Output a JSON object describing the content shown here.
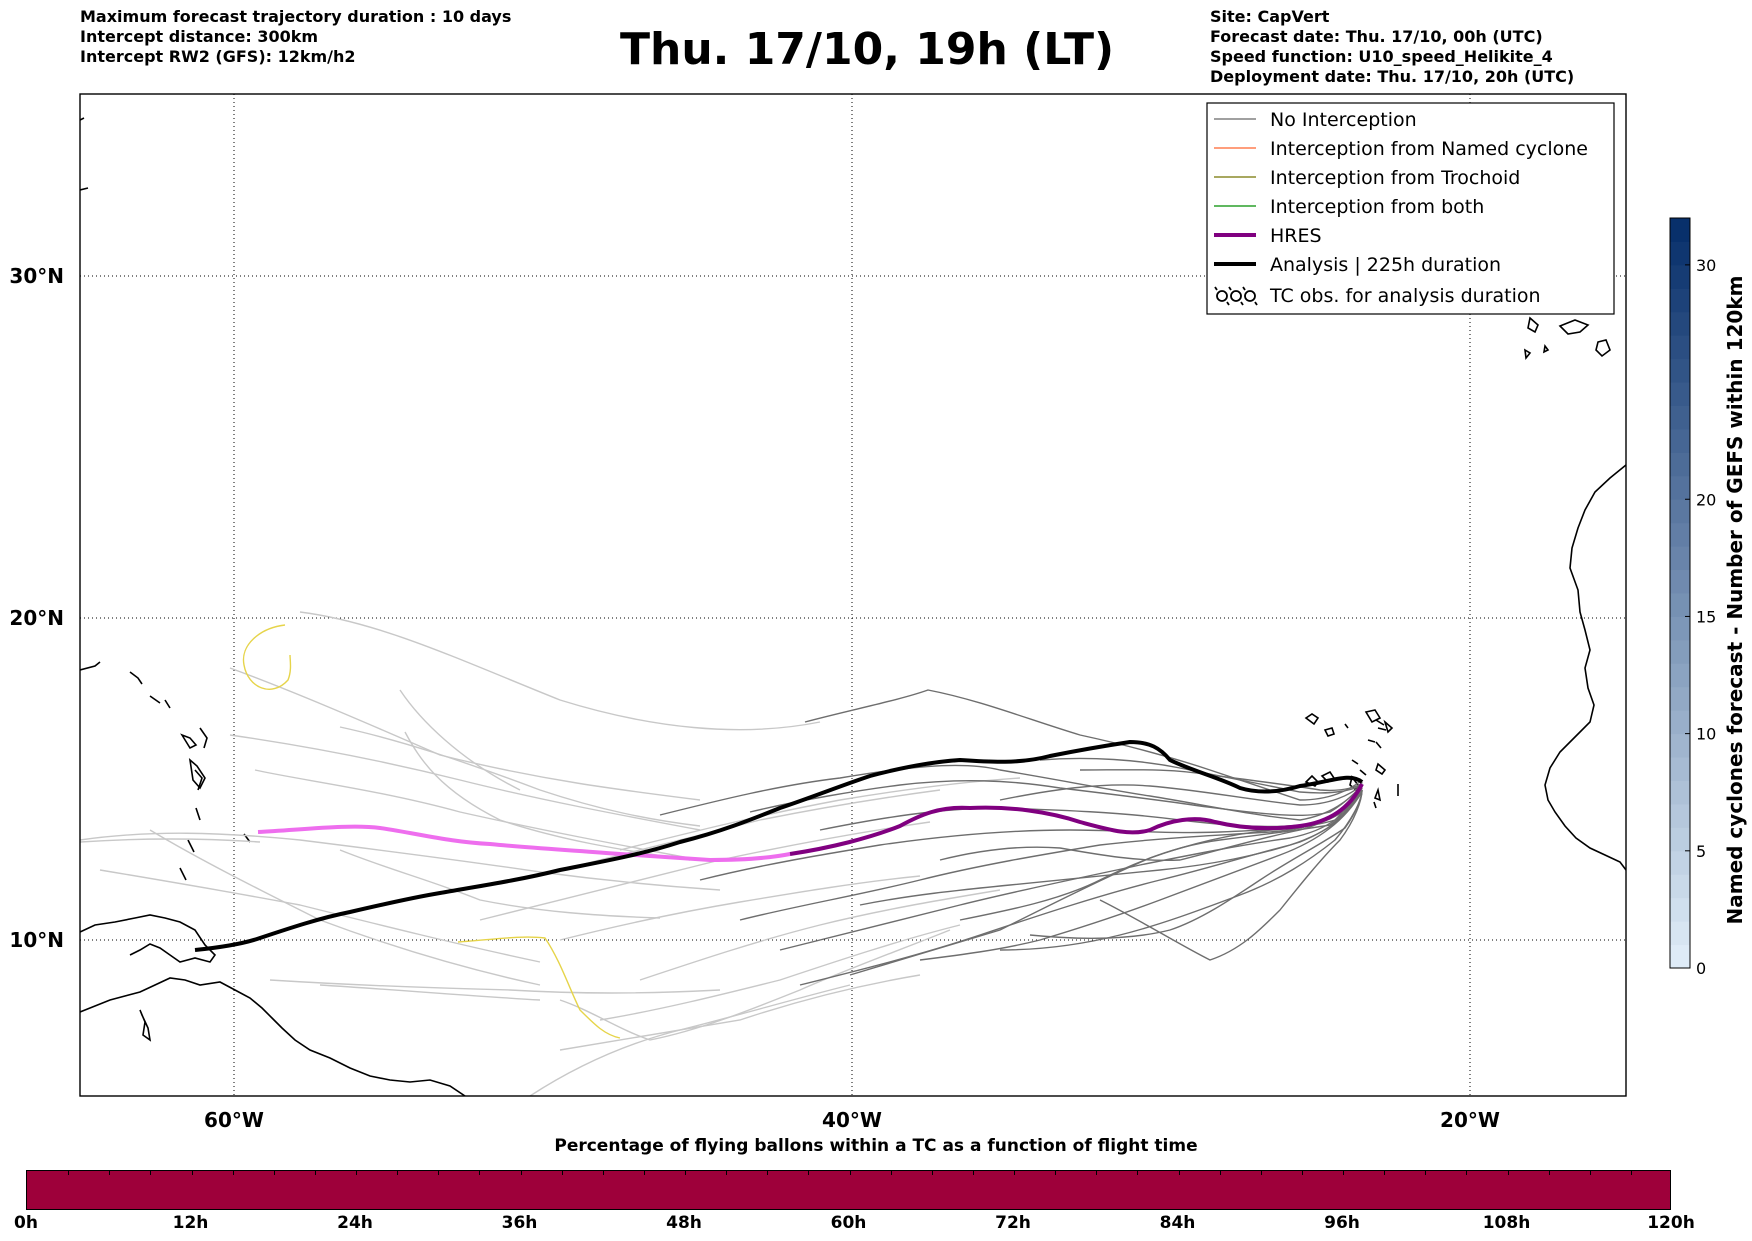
{
  "header": {
    "left_lines": [
      "Maximum forecast trajectory duration : 10 days",
      "Intercept distance: 300km",
      "Intercept RW2 (GFS):  12km/h2"
    ],
    "title": "Thu. 17/10, 19h (LT)",
    "right_lines": [
      "Site: CapVert",
      "Forecast date: Thu. 17/10, 00h (UTC)",
      "Speed function: U10_speed_Helikite_4",
      "Deployment date: Thu. 17/10, 20h (UTC)"
    ]
  },
  "map": {
    "lon_range": [
      -65,
      -15
    ],
    "lat_range": [
      5.5,
      34.8
    ],
    "lon_ticks": [
      {
        "value": -60,
        "label": "60°W"
      },
      {
        "value": -40,
        "label": "40°W"
      },
      {
        "value": -20,
        "label": "20°W"
      }
    ],
    "lat_ticks": [
      {
        "value": 30,
        "label": "30°N"
      },
      {
        "value": 20,
        "label": "20°N"
      },
      {
        "value": 10,
        "label": "10°N"
      }
    ],
    "grid": "dotted"
  },
  "legend": {
    "placement": "top-right",
    "entries": [
      {
        "label": "No Interception",
        "color": "#808080"
      },
      {
        "label": "Interception from Named cyclone",
        "color": "#ff7f50"
      },
      {
        "label": "Interception from Trochoid",
        "color": "#8b8b2b"
      },
      {
        "label": "Interception from both",
        "color": "#2ca02c"
      },
      {
        "label": "HRES",
        "color": "#800080"
      },
      {
        "label": "Analysis | 225h duration",
        "color": "#000000"
      },
      {
        "label": "TC obs. for analysis duration",
        "icon": "tc-symbol-icon"
      }
    ]
  },
  "colorbar": {
    "label": "Named cyclones forecast - Number of GEFS within 120km",
    "ticks": [
      "0",
      "5",
      "10",
      "15",
      "20",
      "30"
    ],
    "tick_values": [
      0,
      5,
      10,
      15,
      20,
      30
    ],
    "max": 32
  },
  "time_bar": {
    "title": "Percentage of flying ballons within a TC as a function of flight time",
    "ticks": [
      "0h",
      "12h",
      "24h",
      "36h",
      "48h",
      "60h",
      "72h",
      "84h",
      "96h",
      "108h",
      "120h"
    ],
    "color": "#9e003a"
  }
}
